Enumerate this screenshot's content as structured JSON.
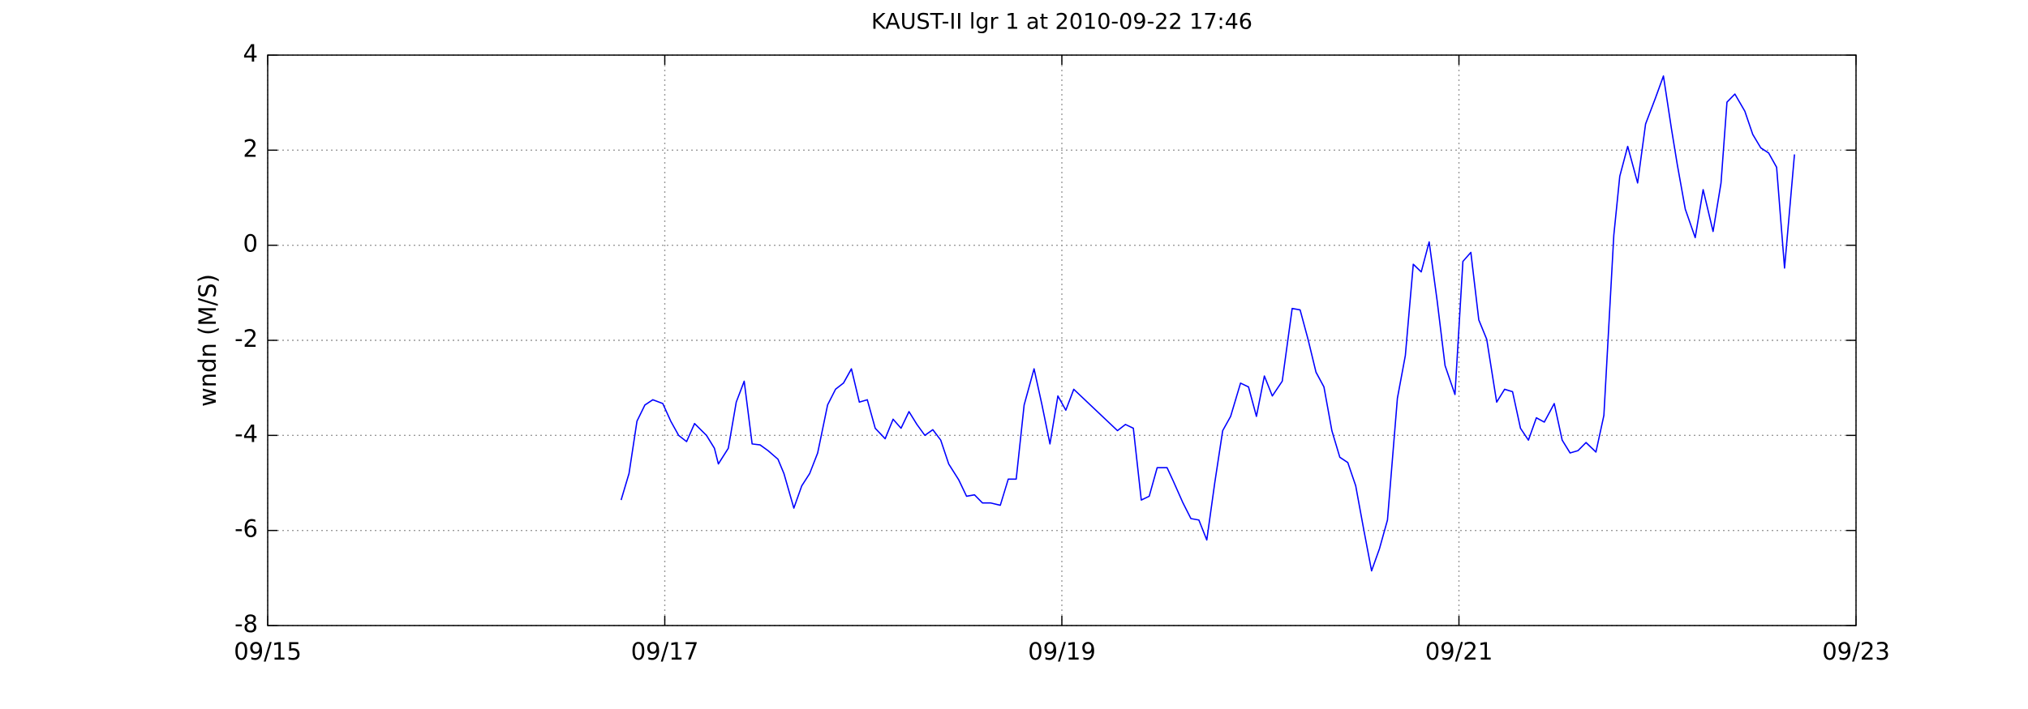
{
  "chart_data": {
    "type": "line",
    "title": "KAUST-II lgr 1 at 2010-09-22 17:46",
    "ylabel": "wndn (M/S)",
    "series": [
      {
        "color": "#0000ff",
        "x": [
          16.78,
          16.82,
          16.86,
          16.9,
          16.94,
          16.99,
          17.03,
          17.07,
          17.11,
          17.15,
          17.21,
          17.25,
          17.27,
          17.32,
          17.36,
          17.4,
          17.44,
          17.48,
          17.52,
          17.57,
          17.6,
          17.65,
          17.69,
          17.73,
          17.77,
          17.82,
          17.86,
          17.9,
          17.94,
          17.98,
          18.02,
          18.06,
          18.11,
          18.15,
          18.19,
          18.23,
          18.27,
          18.31,
          18.35,
          18.39,
          18.43,
          18.48,
          18.52,
          18.56,
          18.6,
          18.64,
          18.69,
          18.73,
          18.77,
          18.81,
          18.86,
          18.9,
          18.94,
          18.98,
          19.02,
          19.06,
          19.28,
          19.32,
          19.36,
          19.4,
          19.44,
          19.48,
          19.53,
          19.56,
          19.61,
          19.65,
          19.69,
          19.73,
          19.77,
          19.81,
          19.85,
          19.9,
          19.94,
          19.98,
          20.02,
          20.06,
          20.11,
          20.16,
          20.2,
          20.24,
          20.28,
          20.32,
          20.36,
          20.4,
          20.44,
          20.48,
          20.52,
          20.56,
          20.6,
          20.64,
          20.69,
          20.73,
          20.77,
          20.81,
          20.85,
          20.89,
          20.93,
          20.98,
          21.02,
          21.06,
          21.1,
          21.14,
          21.19,
          21.23,
          21.27,
          21.31,
          21.35,
          21.39,
          21.43,
          21.48,
          21.52,
          21.56,
          21.6,
          21.64,
          21.69,
          21.73,
          21.78,
          21.81,
          21.85,
          21.9,
          21.94,
          21.99,
          22.03,
          22.07,
          22.1,
          22.14,
          22.19,
          22.23,
          22.28,
          22.32,
          22.35,
          22.39,
          22.44,
          22.48,
          22.52,
          22.56,
          22.6,
          22.64,
          22.69
        ],
        "values": [
          -5.36,
          -4.8,
          -3.7,
          -3.36,
          -3.25,
          -3.33,
          -3.7,
          -4.0,
          -4.13,
          -3.75,
          -4.0,
          -4.27,
          -4.6,
          -4.27,
          -3.3,
          -2.86,
          -4.18,
          -4.2,
          -4.32,
          -4.5,
          -4.8,
          -5.53,
          -5.06,
          -4.8,
          -4.37,
          -3.36,
          -3.03,
          -2.9,
          -2.6,
          -3.3,
          -3.25,
          -3.85,
          -4.07,
          -3.66,
          -3.85,
          -3.5,
          -3.77,
          -4.0,
          -3.88,
          -4.1,
          -4.6,
          -4.93,
          -5.28,
          -5.25,
          -5.42,
          -5.42,
          -5.47,
          -4.92,
          -4.92,
          -3.36,
          -2.6,
          -3.36,
          -4.18,
          -3.17,
          -3.47,
          -3.03,
          -3.9,
          -3.77,
          -3.85,
          -5.36,
          -5.28,
          -4.68,
          -4.68,
          -4.95,
          -5.42,
          -5.75,
          -5.78,
          -6.2,
          -5.0,
          -3.9,
          -3.6,
          -2.9,
          -2.98,
          -3.6,
          -2.75,
          -3.17,
          -2.86,
          -1.33,
          -1.36,
          -1.98,
          -2.67,
          -2.98,
          -3.9,
          -4.46,
          -4.57,
          -5.06,
          -5.97,
          -6.85,
          -6.38,
          -5.78,
          -3.22,
          -2.32,
          -0.4,
          -0.56,
          0.07,
          -1.16,
          -2.53,
          -3.14,
          -0.34,
          -0.15,
          -1.57,
          -1.98,
          -3.3,
          -3.03,
          -3.08,
          -3.85,
          -4.1,
          -3.63,
          -3.72,
          -3.33,
          -4.1,
          -4.37,
          -4.32,
          -4.15,
          -4.35,
          -3.58,
          0.21,
          1.45,
          2.08,
          1.31,
          2.55,
          3.1,
          3.56,
          2.46,
          1.69,
          0.76,
          0.16,
          1.17,
          0.29,
          1.31,
          3.01,
          3.18,
          2.82,
          2.33,
          2.05,
          1.94,
          1.64,
          -0.48,
          1.91
        ]
      }
    ],
    "xlim": [
      15,
      23
    ],
    "xticks": [
      {
        "value": 15,
        "label": "09/15"
      },
      {
        "value": 17,
        "label": "09/17"
      },
      {
        "value": 19,
        "label": "09/19"
      },
      {
        "value": 21,
        "label": "09/21"
      },
      {
        "value": 23,
        "label": "09/23"
      }
    ],
    "ylim": [
      -8,
      4
    ],
    "yticks": [
      -8,
      -6,
      -4,
      -2,
      0,
      2,
      4
    ],
    "grid": true
  }
}
